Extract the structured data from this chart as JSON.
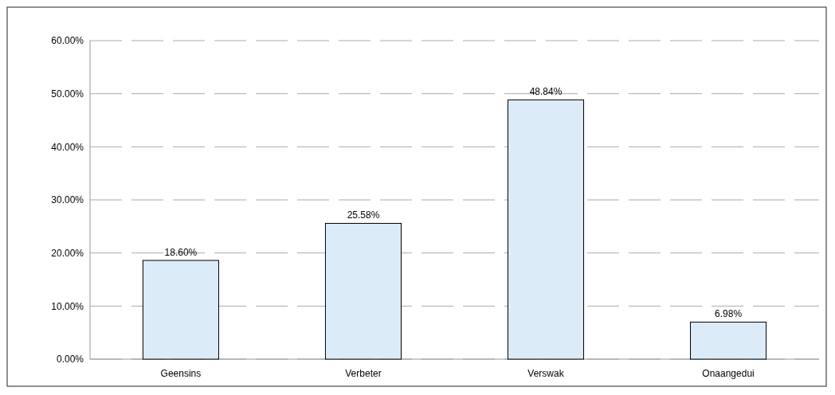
{
  "chart_data": {
    "type": "bar",
    "categories": [
      "Geensins",
      "Verbeter",
      "Verswak",
      "Onaangedui"
    ],
    "values": [
      18.6,
      25.58,
      48.84,
      6.98
    ],
    "color": "#dcebf8",
    "value_labels": [
      "18.60%",
      "25.58%",
      "48.84%",
      "6.98%"
    ],
    "ylim": [
      0,
      60
    ],
    "yticks": [
      {
        "value": 0,
        "label": "0.00%"
      },
      {
        "value": 10,
        "label": "10.00%"
      },
      {
        "value": 20,
        "label": "20.00%"
      },
      {
        "value": 30,
        "label": "30.00%"
      },
      {
        "value": 40,
        "label": "40.00%"
      },
      {
        "value": 50,
        "label": "50.00%"
      },
      {
        "value": 60,
        "label": "60.00%"
      }
    ],
    "grid": "y"
  }
}
